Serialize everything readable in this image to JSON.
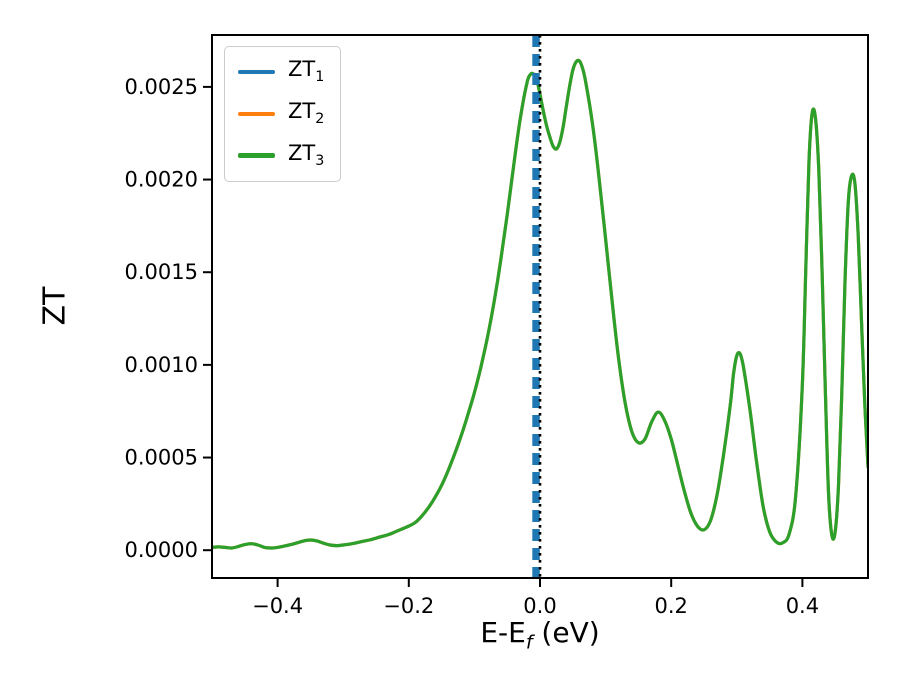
{
  "chart_data": {
    "type": "line",
    "title": "",
    "ylabel": "ZT",
    "xlabel": {
      "text": "E-E_f (eV)",
      "main": "E-E",
      "sub": "f",
      "suffix": " (eV)"
    },
    "xlim": [
      -0.5,
      0.5
    ],
    "ylim": [
      -0.00015,
      0.00278
    ],
    "xticks": [
      -0.4,
      -0.2,
      0.0,
      0.2,
      0.4
    ],
    "xtick_labels": [
      "−0.4",
      "−0.2",
      "0.0",
      "0.2",
      "0.4"
    ],
    "yticks": [
      0.0,
      0.0005,
      0.001,
      0.0015,
      0.002,
      0.0025
    ],
    "ytick_labels": [
      "0.0000",
      "0.0005",
      "0.0010",
      "0.0015",
      "0.0020",
      "0.0025"
    ],
    "grid": false,
    "legend_position": "upper-left",
    "series": [
      {
        "name": "ZT1",
        "label_main": "ZT",
        "label_sub": "1",
        "color": "#1f77b4",
        "style": "vline-dashed",
        "x": -0.006,
        "linewidth": 7.5
      },
      {
        "name": "ZT2",
        "label_main": "ZT",
        "label_sub": "2",
        "color": "#ff7f0e",
        "style": "line",
        "points_ref": "ZT3",
        "linewidth": 3.2
      },
      {
        "name": "ZT3",
        "label_main": "ZT",
        "label_sub": "3",
        "color": "#2ca02c",
        "style": "line",
        "linewidth": 3.2,
        "points": [
          [
            -0.5,
            1.5e-05
          ],
          [
            -0.49,
            1.8e-05
          ],
          [
            -0.48,
            1.5e-05
          ],
          [
            -0.47,
            1.2e-05
          ],
          [
            -0.46,
            2e-05
          ],
          [
            -0.45,
            3e-05
          ],
          [
            -0.44,
            3.5e-05
          ],
          [
            -0.43,
            2.8e-05
          ],
          [
            -0.42,
            1.5e-05
          ],
          [
            -0.41,
            1.2e-05
          ],
          [
            -0.4,
            1.5e-05
          ],
          [
            -0.39,
            2.2e-05
          ],
          [
            -0.38,
            3e-05
          ],
          [
            -0.37,
            4e-05
          ],
          [
            -0.36,
            5e-05
          ],
          [
            -0.35,
            5.5e-05
          ],
          [
            -0.34,
            5e-05
          ],
          [
            -0.33,
            3.8e-05
          ],
          [
            -0.32,
            2.8e-05
          ],
          [
            -0.31,
            2.5e-05
          ],
          [
            -0.3,
            2.8e-05
          ],
          [
            -0.29,
            3.3e-05
          ],
          [
            -0.28,
            4e-05
          ],
          [
            -0.27,
            4.8e-05
          ],
          [
            -0.26,
            5.5e-05
          ],
          [
            -0.25,
            6.5e-05
          ],
          [
            -0.24,
            7.5e-05
          ],
          [
            -0.23,
            8.5e-05
          ],
          [
            -0.22,
            0.0001
          ],
          [
            -0.21,
            0.000115
          ],
          [
            -0.2,
            0.00013
          ],
          [
            -0.19,
            0.00015
          ],
          [
            -0.18,
            0.000185
          ],
          [
            -0.17,
            0.00023
          ],
          [
            -0.16,
            0.000285
          ],
          [
            -0.15,
            0.00035
          ],
          [
            -0.14,
            0.00043
          ],
          [
            -0.13,
            0.00052
          ],
          [
            -0.12,
            0.00062
          ],
          [
            -0.11,
            0.00073
          ],
          [
            -0.1,
            0.00085
          ],
          [
            -0.09,
            0.00099
          ],
          [
            -0.08,
            0.00115
          ],
          [
            -0.07,
            0.00134
          ],
          [
            -0.06,
            0.00156
          ],
          [
            -0.05,
            0.00181
          ],
          [
            -0.04,
            0.00208
          ],
          [
            -0.03,
            0.00233
          ],
          [
            -0.02,
            0.00252
          ],
          [
            -0.015,
            0.002565
          ],
          [
            -0.01,
            0.00257
          ],
          [
            -0.005,
            0.00254
          ],
          [
            0.0,
            0.00246
          ],
          [
            0.005,
            0.00237
          ],
          [
            0.01,
            0.00229
          ],
          [
            0.015,
            0.00223
          ],
          [
            0.02,
            0.00218
          ],
          [
            0.025,
            0.002165
          ],
          [
            0.03,
            0.0022
          ],
          [
            0.035,
            0.00228
          ],
          [
            0.04,
            0.00239
          ],
          [
            0.045,
            0.0025
          ],
          [
            0.05,
            0.00259
          ],
          [
            0.055,
            0.002635
          ],
          [
            0.06,
            0.00264
          ],
          [
            0.065,
            0.0026
          ],
          [
            0.07,
            0.00252
          ],
          [
            0.08,
            0.0023
          ],
          [
            0.09,
            0.00201
          ],
          [
            0.1,
            0.00168
          ],
          [
            0.11,
            0.00134
          ],
          [
            0.12,
            0.00103
          ],
          [
            0.13,
            0.00079
          ],
          [
            0.14,
            0.00064
          ],
          [
            0.15,
            0.00058
          ],
          [
            0.16,
            0.0006
          ],
          [
            0.17,
            0.00069
          ],
          [
            0.18,
            0.000745
          ],
          [
            0.19,
            0.0007
          ],
          [
            0.2,
            0.0006
          ],
          [
            0.21,
            0.00046
          ],
          [
            0.22,
            0.00032
          ],
          [
            0.23,
            0.0002
          ],
          [
            0.24,
            0.00013
          ],
          [
            0.25,
            0.00011
          ],
          [
            0.26,
            0.00016
          ],
          [
            0.27,
            0.0003
          ],
          [
            0.28,
            0.00052
          ],
          [
            0.29,
            0.00078
          ],
          [
            0.295,
            0.00095
          ],
          [
            0.3,
            0.00105
          ],
          [
            0.305,
            0.00106
          ],
          [
            0.31,
            0.00099
          ],
          [
            0.32,
            0.00076
          ],
          [
            0.33,
            0.00048
          ],
          [
            0.34,
            0.00024
          ],
          [
            0.35,
            0.0001
          ],
          [
            0.36,
            4.5e-05
          ],
          [
            0.37,
            4e-05
          ],
          [
            0.38,
            9e-05
          ],
          [
            0.39,
            0.0003
          ],
          [
            0.4,
            0.0009
          ],
          [
            0.405,
            0.0015
          ],
          [
            0.41,
            0.0021
          ],
          [
            0.415,
            0.00236
          ],
          [
            0.42,
            0.00233
          ],
          [
            0.425,
            0.00205
          ],
          [
            0.43,
            0.0015
          ],
          [
            0.435,
            0.00085
          ],
          [
            0.44,
            0.0003
          ],
          [
            0.445,
            8e-05
          ],
          [
            0.45,
            0.0001
          ],
          [
            0.455,
            0.00035
          ],
          [
            0.46,
            0.00085
          ],
          [
            0.465,
            0.00145
          ],
          [
            0.47,
            0.00188
          ],
          [
            0.475,
            0.00202
          ],
          [
            0.48,
            0.00198
          ],
          [
            0.485,
            0.0017
          ],
          [
            0.49,
            0.00125
          ],
          [
            0.495,
            0.0008
          ],
          [
            0.5,
            0.00045
          ]
        ]
      }
    ],
    "annotations": [
      {
        "type": "vline",
        "x": 0.0,
        "color": "#000000",
        "style": "dotted",
        "linewidth": 2.6
      }
    ]
  }
}
